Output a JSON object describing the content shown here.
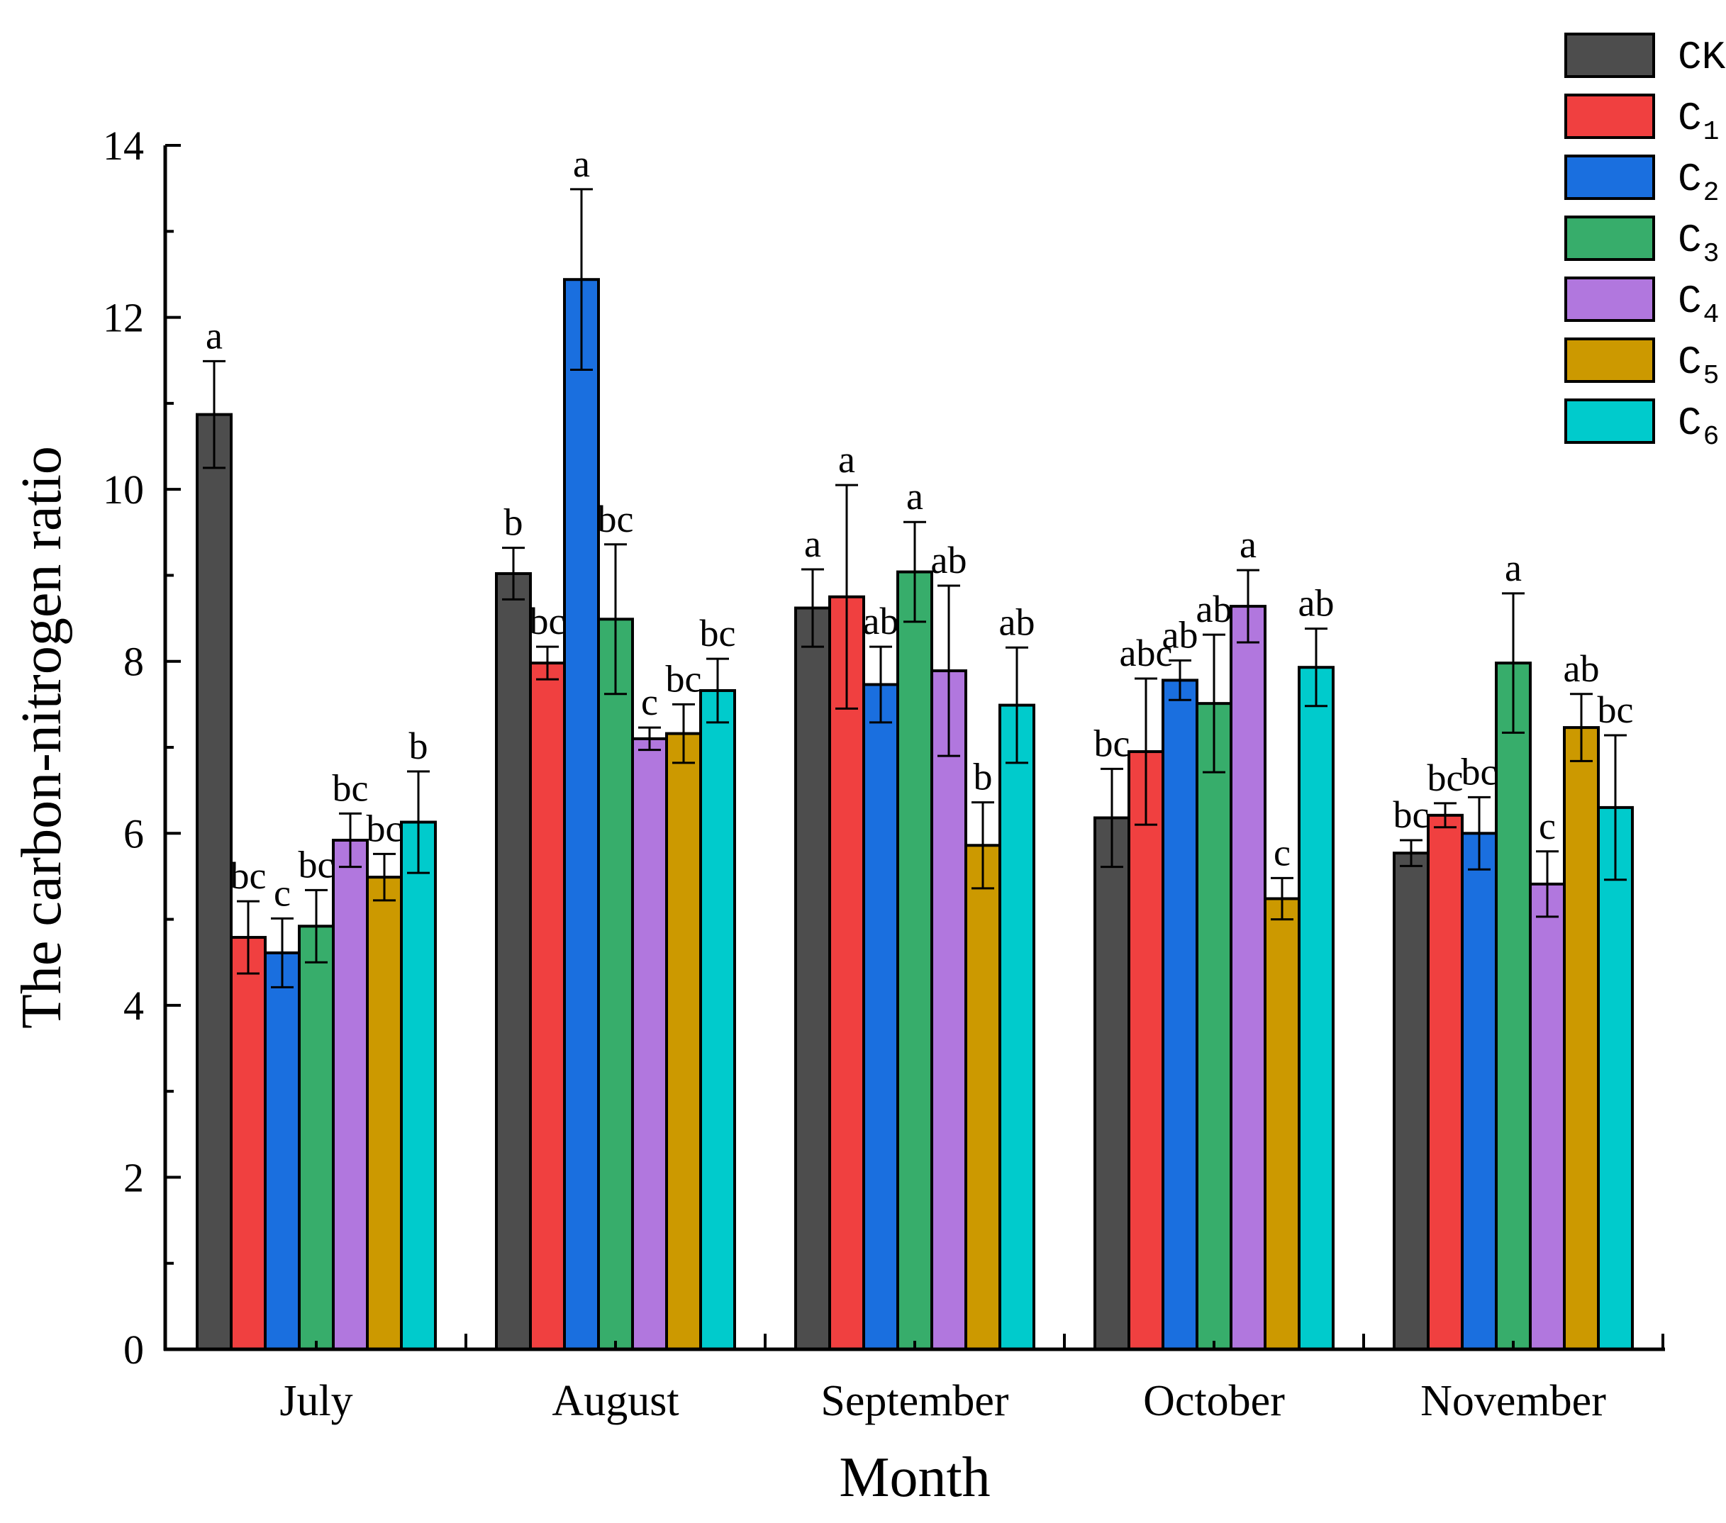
{
  "chart_data": {
    "type": "bar",
    "title": "",
    "xlabel": "Month",
    "ylabel": "The carbon-nitrogen ratio",
    "ylim": [
      0,
      14
    ],
    "yticks": [
      0,
      2,
      4,
      6,
      8,
      10,
      12,
      14
    ],
    "categories": [
      "July",
      "August",
      "September",
      "October",
      "November"
    ],
    "legend_position": "top-right",
    "series": [
      {
        "name": "CK",
        "label_main": "CK",
        "label_sub": "",
        "color": "#4d4d4d",
        "values": [
          10.87,
          9.02,
          8.62,
          6.18,
          5.77
        ],
        "errors": [
          0.62,
          0.3,
          0.45,
          0.57,
          0.15
        ],
        "letters": [
          "a",
          "b",
          "a",
          "bc",
          "bc"
        ]
      },
      {
        "name": "C1",
        "label_main": "C",
        "label_sub": "1",
        "color": "#f04040",
        "values": [
          4.79,
          7.98,
          8.75,
          6.95,
          6.21
        ],
        "errors": [
          0.42,
          0.19,
          1.3,
          0.85,
          0.14
        ],
        "letters": [
          "bc",
          "bc",
          "a",
          "abc",
          "bc"
        ]
      },
      {
        "name": "C2",
        "label_main": "C",
        "label_sub": "2",
        "color": "#1a6fdf",
        "values": [
          4.61,
          12.44,
          7.73,
          7.78,
          6.0
        ],
        "errors": [
          0.4,
          1.05,
          0.44,
          0.23,
          0.42
        ],
        "letters": [
          "c",
          "a",
          "ab",
          "ab",
          "bc"
        ]
      },
      {
        "name": "C3",
        "label_main": "C",
        "label_sub": "3",
        "color": "#37ad6b",
        "values": [
          4.92,
          8.49,
          9.04,
          7.51,
          7.98
        ],
        "errors": [
          0.42,
          0.87,
          0.58,
          0.8,
          0.81
        ],
        "letters": [
          "bc",
          "bc",
          "a",
          "ab",
          "a"
        ]
      },
      {
        "name": "C4",
        "label_main": "C",
        "label_sub": "4",
        "color": "#b177de",
        "values": [
          5.92,
          7.1,
          7.89,
          8.64,
          5.41
        ],
        "errors": [
          0.31,
          0.13,
          0.99,
          0.42,
          0.38
        ],
        "letters": [
          "bc",
          "c",
          "ab",
          "a",
          "c"
        ]
      },
      {
        "name": "C5",
        "label_main": "C",
        "label_sub": "5",
        "color": "#cc9900",
        "values": [
          5.49,
          7.16,
          5.86,
          5.24,
          7.23
        ],
        "errors": [
          0.27,
          0.34,
          0.5,
          0.24,
          0.39
        ],
        "letters": [
          "bc",
          "bc",
          "b",
          "c",
          "ab"
        ]
      },
      {
        "name": "C6",
        "label_main": "C",
        "label_sub": "6",
        "color": "#00cbcc",
        "values": [
          6.13,
          7.66,
          7.49,
          7.93,
          6.3
        ],
        "errors": [
          0.59,
          0.37,
          0.67,
          0.45,
          0.84
        ],
        "letters": [
          "b",
          "bc",
          "ab",
          "ab",
          "bc"
        ]
      }
    ]
  }
}
